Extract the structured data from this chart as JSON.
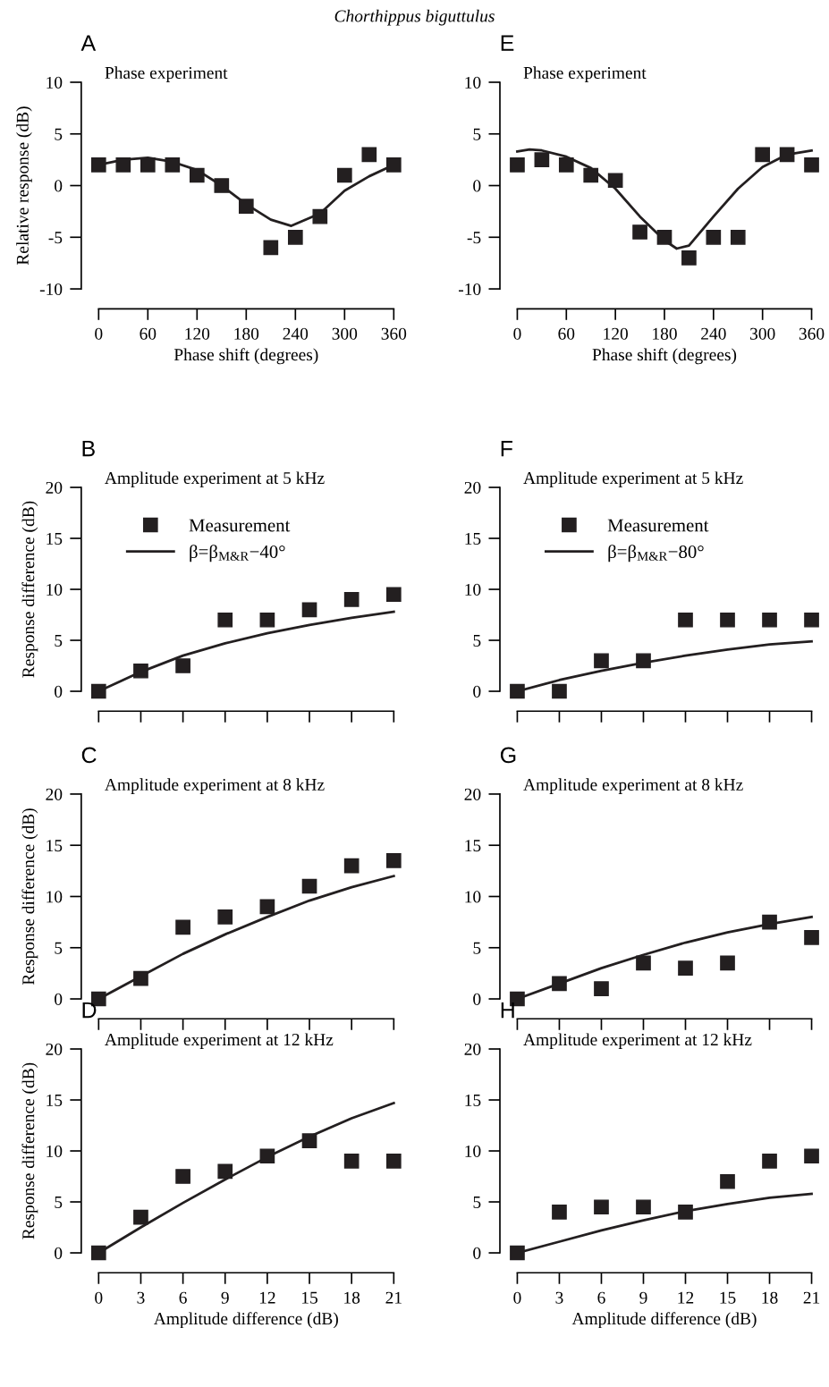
{
  "chart_data": [
    {
      "type": "scatter",
      "title": "Phase experiment",
      "ylabel": "Relative response (dB)",
      "xlabel": "Phase shift (degrees)",
      "annotations": [
        "A",
        "Chorthippus biguttulus"
      ],
      "x": [
        0,
        30,
        60,
        90,
        120,
        150,
        180,
        210,
        240,
        270,
        300,
        330,
        360
      ],
      "xlim": [
        0,
        360
      ],
      "xticks": [
        0,
        60,
        120,
        180,
        240,
        300,
        360
      ],
      "ylim": [
        -10,
        10
      ],
      "yticks": [
        -10,
        -5,
        0,
        5,
        10
      ],
      "grid": false,
      "legend": false,
      "series": [
        {
          "color": "#231f20",
          "marker": "square",
          "values": [
            2,
            2,
            2,
            2,
            1,
            0,
            -2,
            -6,
            -5,
            -3,
            1,
            3,
            2
          ]
        },
        {
          "type": "line",
          "color": "#231f20",
          "line_style": "solid",
          "x": [
            0,
            30,
            60,
            90,
            120,
            150,
            180,
            210,
            235,
            270,
            300,
            330,
            360
          ],
          "values": [
            2,
            2.5,
            2.7,
            2.3,
            1.5,
            0,
            -1.8,
            -3.3,
            -3.9,
            -2.7,
            -0.5,
            0.9,
            2
          ]
        }
      ]
    },
    {
      "type": "scatter",
      "title": "Phase experiment",
      "xlabel": "Phase shift (degrees)",
      "annotations": [
        "E"
      ],
      "x": [
        0,
        30,
        60,
        90,
        120,
        150,
        180,
        210,
        240,
        270,
        300,
        330,
        360
      ],
      "xlim": [
        0,
        360
      ],
      "xticks": [
        0,
        60,
        120,
        180,
        240,
        300,
        360
      ],
      "ylim": [
        -10,
        10
      ],
      "yticks": [
        -10,
        -5,
        0,
        5,
        10
      ],
      "grid": false,
      "legend": false,
      "series": [
        {
          "color": "#231f20",
          "marker": "square",
          "values": [
            2,
            2.5,
            2,
            1,
            0.5,
            -4.5,
            -5,
            -7,
            -5,
            -5,
            3,
            3,
            2
          ]
        },
        {
          "type": "line",
          "color": "#231f20",
          "line_style": "solid",
          "x": [
            0,
            15,
            30,
            60,
            90,
            120,
            150,
            180,
            195,
            210,
            240,
            270,
            300,
            330,
            360
          ],
          "values": [
            3.3,
            3.5,
            3.4,
            2.8,
            1.7,
            -0.3,
            -3,
            -5.3,
            -6.1,
            -5.8,
            -3,
            -0.3,
            1.8,
            3,
            3.4
          ]
        }
      ]
    },
    {
      "type": "scatter",
      "title": "Amplitude experiment at 5 kHz",
      "ylabel": "Response difference (dB)",
      "annotations": [
        "B"
      ],
      "x": [
        0,
        3,
        6,
        9,
        12,
        15,
        18,
        21
      ],
      "xlim": [
        0,
        21
      ],
      "xticks": [
        0,
        3,
        6,
        9,
        12,
        15,
        18,
        21
      ],
      "tick_labels": "y",
      "ylim": [
        0,
        20
      ],
      "yticks": [
        0,
        5,
        10,
        15,
        20
      ],
      "grid": false,
      "legend": "top left",
      "series": [
        {
          "name": "Measurement",
          "color": "#231f20",
          "marker": "square",
          "values": [
            0,
            2,
            2.5,
            7,
            7,
            8,
            9,
            9.5
          ]
        },
        {
          "name": "β=β$_{M&R}$−40°",
          "type": "line",
          "color": "#231f20",
          "line_style": "solid",
          "values": [
            0,
            1.9,
            3.5,
            4.7,
            5.7,
            6.5,
            7.2,
            7.8
          ]
        }
      ]
    },
    {
      "type": "scatter",
      "title": "Amplitude experiment at 5 kHz",
      "annotations": [
        "F"
      ],
      "x": [
        0,
        3,
        6,
        9,
        12,
        15,
        18,
        21
      ],
      "xlim": [
        0,
        21
      ],
      "xticks": [
        0,
        3,
        6,
        9,
        12,
        15,
        18,
        21
      ],
      "tick_labels": "y",
      "ylim": [
        0,
        20
      ],
      "yticks": [
        0,
        5,
        10,
        15,
        20
      ],
      "grid": false,
      "legend": "top left",
      "series": [
        {
          "name": "Measurement",
          "color": "#231f20",
          "marker": "square",
          "values": [
            0,
            0,
            3,
            3,
            7,
            7,
            7,
            7
          ]
        },
        {
          "name": "β=β$_{M&R}$−80°",
          "type": "line",
          "color": "#231f20",
          "line_style": "solid",
          "values": [
            0,
            1.1,
            2,
            2.8,
            3.5,
            4.1,
            4.6,
            4.9
          ]
        }
      ]
    },
    {
      "type": "scatter",
      "title": "Amplitude experiment at 8 kHz",
      "ylabel": "Response difference (dB)",
      "annotations": [
        "C"
      ],
      "x": [
        0,
        3,
        6,
        9,
        12,
        15,
        18,
        21
      ],
      "xlim": [
        0,
        21
      ],
      "xticks": [
        0,
        3,
        6,
        9,
        12,
        15,
        18,
        21
      ],
      "tick_labels": "y",
      "ylim": [
        0,
        20
      ],
      "yticks": [
        0,
        5,
        10,
        15,
        20
      ],
      "grid": false,
      "legend": false,
      "series": [
        {
          "color": "#231f20",
          "marker": "square",
          "values": [
            0,
            2,
            7,
            8,
            9,
            11,
            13,
            13.5
          ]
        },
        {
          "type": "line",
          "color": "#231f20",
          "line_style": "solid",
          "values": [
            0,
            2.2,
            4.4,
            6.3,
            8,
            9.6,
            10.9,
            12
          ]
        }
      ]
    },
    {
      "type": "scatter",
      "title": "Amplitude experiment at 8 kHz",
      "annotations": [
        "G"
      ],
      "x": [
        0,
        3,
        6,
        9,
        12,
        15,
        18,
        21
      ],
      "xlim": [
        0,
        21
      ],
      "xticks": [
        0,
        3,
        6,
        9,
        12,
        15,
        18,
        21
      ],
      "tick_labels": "y",
      "ylim": [
        0,
        20
      ],
      "yticks": [
        0,
        5,
        10,
        15,
        20
      ],
      "grid": false,
      "legend": false,
      "series": [
        {
          "color": "#231f20",
          "marker": "square",
          "values": [
            0,
            1.5,
            1,
            3.5,
            3,
            3.5,
            7.5,
            6
          ]
        },
        {
          "type": "line",
          "color": "#231f20",
          "line_style": "solid",
          "values": [
            0,
            1.5,
            3,
            4.3,
            5.5,
            6.5,
            7.3,
            8
          ]
        }
      ]
    },
    {
      "type": "scatter",
      "title": "Amplitude experiment at 12 kHz",
      "ylabel": "Response difference (dB)",
      "xlabel": "Amplitude difference (dB)",
      "annotations": [
        "D"
      ],
      "x": [
        0,
        3,
        6,
        9,
        12,
        15,
        18,
        21
      ],
      "xlim": [
        0,
        21
      ],
      "xticks": [
        0,
        3,
        6,
        9,
        12,
        15,
        18,
        21
      ],
      "ylim": [
        0,
        20
      ],
      "yticks": [
        0,
        5,
        10,
        15,
        20
      ],
      "grid": false,
      "legend": false,
      "series": [
        {
          "color": "#231f20",
          "marker": "square",
          "values": [
            0,
            3.5,
            7.5,
            8,
            9.5,
            11,
            9,
            9
          ]
        },
        {
          "type": "line",
          "color": "#231f20",
          "line_style": "solid",
          "values": [
            0,
            2.5,
            4.9,
            7.2,
            9.4,
            11.4,
            13.2,
            14.7
          ]
        }
      ]
    },
    {
      "type": "scatter",
      "title": "Amplitude experiment at 12 kHz",
      "xlabel": "Amplitude difference (dB)",
      "annotations": [
        "H"
      ],
      "x": [
        0,
        3,
        6,
        9,
        12,
        15,
        18,
        21
      ],
      "xlim": [
        0,
        21
      ],
      "xticks": [
        0,
        3,
        6,
        9,
        12,
        15,
        18,
        21
      ],
      "ylim": [
        0,
        20
      ],
      "yticks": [
        0,
        5,
        10,
        15,
        20
      ],
      "grid": false,
      "legend": false,
      "series": [
        {
          "color": "#231f20",
          "marker": "square",
          "values": [
            0,
            4,
            4.5,
            4.5,
            4,
            7,
            9,
            9.5
          ]
        },
        {
          "type": "line",
          "color": "#231f20",
          "line_style": "solid",
          "values": [
            0,
            1.1,
            2.2,
            3.2,
            4.1,
            4.8,
            5.4,
            5.8
          ]
        }
      ]
    }
  ]
}
